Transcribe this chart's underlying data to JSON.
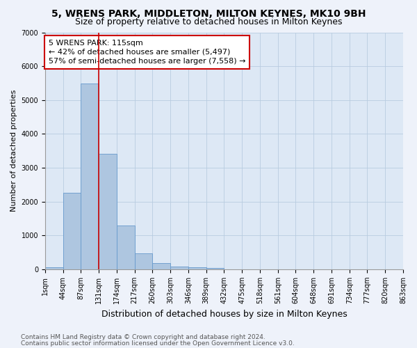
{
  "title1": "5, WRENS PARK, MIDDLETON, MILTON KEYNES, MK10 9BH",
  "title2": "Size of property relative to detached houses in Milton Keynes",
  "xlabel": "Distribution of detached houses by size in Milton Keynes",
  "ylabel": "Number of detached properties",
  "bar_color": "#aec6e0",
  "bar_edge_color": "#6699cc",
  "background_color": "#dde8f5",
  "fig_background_color": "#eef2fa",
  "bin_labels": [
    "1sqm",
    "44sqm",
    "87sqm",
    "131sqm",
    "174sqm",
    "217sqm",
    "260sqm",
    "303sqm",
    "346sqm",
    "389sqm",
    "432sqm",
    "475sqm",
    "518sqm",
    "561sqm",
    "604sqm",
    "648sqm",
    "691sqm",
    "734sqm",
    "777sqm",
    "820sqm",
    "863sqm"
  ],
  "bar_values": [
    65,
    2270,
    5480,
    3420,
    1290,
    470,
    185,
    90,
    55,
    50,
    0,
    0,
    0,
    0,
    0,
    0,
    0,
    0,
    0,
    0
  ],
  "ylim": [
    0,
    7000
  ],
  "yticks": [
    0,
    1000,
    2000,
    3000,
    4000,
    5000,
    6000,
    7000
  ],
  "vline_x": 2.5,
  "marker_label": "5 WRENS PARK: 115sqm",
  "annotation_line1": "← 42% of detached houses are smaller (5,497)",
  "annotation_line2": "57% of semi-detached houses are larger (7,558) →",
  "annotation_box_color": "#ffffff",
  "annotation_box_edge_color": "#cc0000",
  "vline_color": "#cc0000",
  "footer1": "Contains HM Land Registry data © Crown copyright and database right 2024.",
  "footer2": "Contains public sector information licensed under the Open Government Licence v3.0.",
  "title1_fontsize": 10,
  "title2_fontsize": 9,
  "xlabel_fontsize": 9,
  "ylabel_fontsize": 8,
  "tick_fontsize": 7,
  "annotation_fontsize": 8,
  "footer_fontsize": 6.5
}
